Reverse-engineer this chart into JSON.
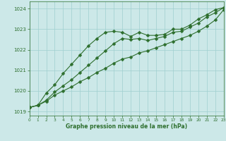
{
  "x": [
    0,
    1,
    2,
    3,
    4,
    5,
    6,
    7,
    8,
    9,
    10,
    11,
    12,
    13,
    14,
    15,
    16,
    17,
    18,
    19,
    20,
    21,
    22,
    23
  ],
  "line1": [
    1019.2,
    1019.3,
    1019.9,
    1020.3,
    1020.85,
    1021.3,
    1021.75,
    1022.2,
    1022.55,
    1022.85,
    1022.9,
    1022.85,
    1022.65,
    1022.85,
    1022.7,
    1022.7,
    1022.75,
    1023.0,
    1023.0,
    1023.2,
    1023.5,
    1023.7,
    1023.95,
    1024.05
  ],
  "line2": [
    1019.2,
    1019.3,
    1019.55,
    1019.95,
    1020.25,
    1020.55,
    1020.9,
    1021.25,
    1021.6,
    1021.95,
    1022.3,
    1022.55,
    1022.5,
    1022.55,
    1022.45,
    1022.55,
    1022.65,
    1022.85,
    1022.9,
    1023.1,
    1023.3,
    1023.6,
    1023.8,
    1024.05
  ],
  "line3": [
    1019.2,
    1019.3,
    1019.5,
    1019.8,
    1020.0,
    1020.2,
    1020.45,
    1020.65,
    1020.9,
    1021.1,
    1021.35,
    1021.55,
    1021.65,
    1021.85,
    1021.95,
    1022.1,
    1022.25,
    1022.4,
    1022.55,
    1022.7,
    1022.9,
    1023.15,
    1023.45,
    1023.95
  ],
  "bg_color": "#cce8e8",
  "line_color": "#2d6e2d",
  "grid_color": "#9fcfcf",
  "xlabel": "Graphe pression niveau de la mer (hPa)",
  "xlim": [
    0,
    23
  ],
  "ylim": [
    1018.8,
    1024.35
  ],
  "yticks": [
    1019,
    1020,
    1021,
    1022,
    1023,
    1024
  ],
  "xticks": [
    0,
    1,
    2,
    3,
    4,
    5,
    6,
    7,
    8,
    9,
    10,
    11,
    12,
    13,
    14,
    15,
    16,
    17,
    18,
    19,
    20,
    21,
    22,
    23
  ]
}
